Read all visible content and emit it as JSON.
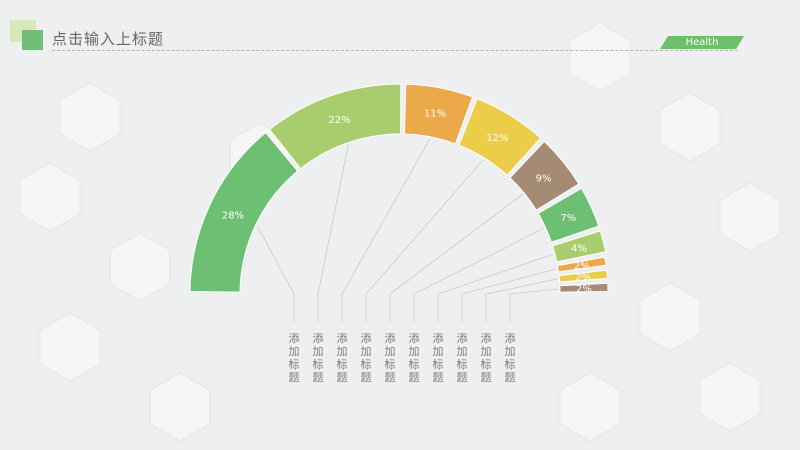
{
  "header": {
    "title": "点击输入上标题",
    "badge": "Health"
  },
  "chart_data": {
    "type": "pie",
    "style": "semicircle",
    "values": [
      28,
      22,
      11,
      12,
      9,
      7,
      4,
      2,
      2,
      2
    ],
    "labels": [
      "28%",
      "22%",
      "11%",
      "12%",
      "9%",
      "7%",
      "4%",
      "2%",
      "2%",
      "2%"
    ],
    "colors": [
      "#6cbf73",
      "#a8cd6e",
      "#eca94a",
      "#eccd4a",
      "#a58a74",
      "#6cbf73",
      "#a8cd6e",
      "#eca94a",
      "#eccd4a",
      "#a58a74"
    ],
    "categories": [
      "添加标题",
      "添加标题",
      "添加标题",
      "添加标题",
      "添加标题",
      "添加标题",
      "添加标题",
      "添加标题",
      "添加标题",
      "添加标题"
    ]
  }
}
